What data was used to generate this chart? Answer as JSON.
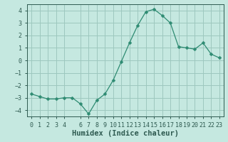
{
  "x": [
    0,
    1,
    2,
    3,
    4,
    5,
    6,
    7,
    8,
    9,
    10,
    11,
    12,
    13,
    14,
    15,
    16,
    17,
    18,
    19,
    20,
    21,
    22,
    23
  ],
  "y": [
    -2.7,
    -2.9,
    -3.1,
    -3.1,
    -3.0,
    -3.0,
    -3.5,
    -4.3,
    -3.2,
    -2.7,
    -1.6,
    -0.1,
    1.4,
    2.8,
    3.9,
    4.1,
    3.6,
    3.0,
    1.1,
    1.0,
    0.9,
    1.4,
    0.5,
    0.2
  ],
  "line_color": "#2e8b72",
  "marker": "D",
  "marker_size": 2.5,
  "bg_color": "#c5e8e0",
  "grid_color": "#9dc8be",
  "xlabel": "Humidex (Indice chaleur)",
  "xlim": [
    -0.5,
    23.5
  ],
  "ylim": [
    -4.5,
    4.5
  ],
  "yticks": [
    -4,
    -3,
    -2,
    -1,
    0,
    1,
    2,
    3,
    4
  ],
  "xticks": [
    0,
    1,
    2,
    3,
    4,
    6,
    7,
    8,
    9,
    10,
    11,
    12,
    13,
    14,
    15,
    16,
    17,
    18,
    19,
    20,
    21,
    22,
    23
  ],
  "xtick_labels": [
    "0",
    "1",
    "2",
    "3",
    "4",
    "6",
    "7",
    "8",
    "9",
    "10",
    "11",
    "12",
    "13",
    "14",
    "15",
    "16",
    "17",
    "18",
    "19",
    "20",
    "21",
    "22",
    "23"
  ],
  "font_color": "#2e5a50",
  "xlabel_fontsize": 7.5,
  "tick_fontsize": 6
}
